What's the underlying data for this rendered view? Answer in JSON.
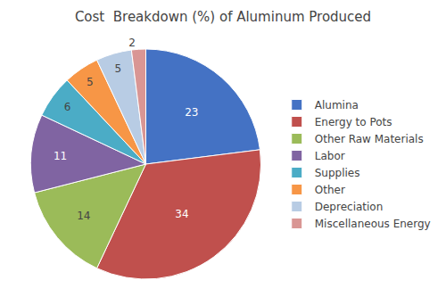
{
  "chart_data": {
    "type": "pie",
    "title": "Cost  Breakdown (%) of Aluminum Produced",
    "categories": [
      "Alumina",
      "Energy to Pots",
      "Other Raw Materials",
      "Labor",
      "Supplies",
      "Other",
      "Depreciation",
      "Miscellaneous Energy"
    ],
    "values": [
      23,
      34,
      14,
      11,
      6,
      5,
      5,
      2
    ],
    "colors": [
      "#4472C4",
      "#C0504D",
      "#9BBB59",
      "#8064A2",
      "#4BACC6",
      "#F79646",
      "#B8CCE4",
      "#D99694"
    ],
    "data_labels": true,
    "legend": "right"
  }
}
